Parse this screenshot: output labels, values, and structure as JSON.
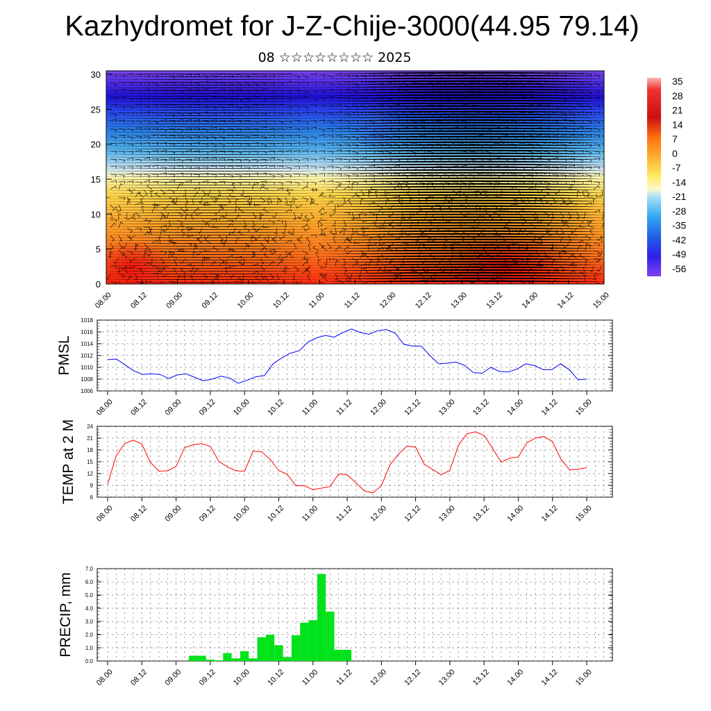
{
  "header": {
    "title": "Kazhydromet for J-Z-Chije-3000(44.95 79.14)",
    "subtitle": "08 ☆☆☆☆☆☆☆☆ 2025"
  },
  "time_labels": [
    "08.00",
    "08.12",
    "09.00",
    "09.12",
    "10.00",
    "10.12",
    "11.00",
    "11.12",
    "12.00",
    "12.12",
    "13.00",
    "13.12",
    "14.00",
    "14.12",
    "15.00"
  ],
  "colorbar": {
    "labels": [
      "35",
      "28",
      "21",
      "14",
      "7",
      "0",
      "-7",
      "-14",
      "-21",
      "-28",
      "-35",
      "-42",
      "-49",
      "-56"
    ]
  },
  "chart_data": [
    {
      "type": "heatmap",
      "name": "Vertical cross-section: temperature with wind barbs",
      "x_labels": [
        "08.00",
        "08.12",
        "09.00",
        "09.12",
        "10.00",
        "10.12",
        "11.00",
        "11.12",
        "12.00",
        "12.12",
        "13.00",
        "13.12",
        "14.00",
        "14.12",
        "15.00"
      ],
      "y_ticks": [
        0,
        5,
        10,
        15,
        20,
        25,
        30
      ],
      "ylim": [
        0,
        30.5
      ],
      "color_levels": [
        35,
        28,
        21,
        14,
        7,
        0,
        -7,
        -14,
        -21,
        -28,
        -35,
        -42,
        -49,
        -56
      ],
      "legend_placement": "right"
    },
    {
      "type": "line",
      "ylabel": "PMSL",
      "ylim": [
        1006,
        1018
      ],
      "y_ticks": [
        1006,
        1008,
        1010,
        1012,
        1014,
        1016,
        1018
      ],
      "x_labels": [
        "08.00",
        "08.12",
        "09.00",
        "09.12",
        "10.00",
        "10.12",
        "11.00",
        "11.12",
        "12.00",
        "12.12",
        "13.00",
        "13.12",
        "14.00",
        "14.12",
        "15.00"
      ],
      "color": "#0000ff",
      "values": [
        1011.3,
        1011.4,
        1010.4,
        1009.4,
        1008.8,
        1008.9,
        1008.8,
        1008.1,
        1008.7,
        1008.9,
        1008.3,
        1007.7,
        1008.0,
        1008.5,
        1008.2,
        1007.3,
        1007.8,
        1008.4,
        1008.6,
        1010.6,
        1011.6,
        1012.4,
        1012.8,
        1014.3,
        1015.0,
        1015.4,
        1015.1,
        1015.9,
        1016.5,
        1015.9,
        1015.6,
        1016.2,
        1016.4,
        1015.8,
        1013.9,
        1013.6,
        1013.6,
        1012.0,
        1010.6,
        1010.7,
        1010.9,
        1010.3,
        1009.1,
        1009.0,
        1010.0,
        1009.3,
        1009.2,
        1009.7,
        1010.6,
        1010.3,
        1009.6,
        1009.6,
        1010.6,
        1009.6,
        1007.9,
        1008.0
      ]
    },
    {
      "type": "line",
      "ylabel": "TEMP at 2 M",
      "ylim": [
        6,
        24
      ],
      "y_ticks": [
        6,
        9,
        12,
        15,
        18,
        21,
        24
      ],
      "x_labels": [
        "08.00",
        "08.12",
        "09.00",
        "09.12",
        "10.00",
        "10.12",
        "11.00",
        "11.12",
        "12.00",
        "12.12",
        "13.00",
        "13.12",
        "14.00",
        "14.12",
        "15.00"
      ],
      "color": "#ff0000",
      "values": [
        9.3,
        16.5,
        19.6,
        20.5,
        19.5,
        14.8,
        12.6,
        12.7,
        13.8,
        18.6,
        19.3,
        19.6,
        18.9,
        15.1,
        13.7,
        12.7,
        12.6,
        17.7,
        17.5,
        15.6,
        12.8,
        11.8,
        8.9,
        8.9,
        7.9,
        8.3,
        8.7,
        11.9,
        11.7,
        9.7,
        7.6,
        7.1,
        8.9,
        14.2,
        16.9,
        19.0,
        18.7,
        14.4,
        13.0,
        11.7,
        12.8,
        19.2,
        22.1,
        22.6,
        21.7,
        18.4,
        14.9,
        15.9,
        16.2,
        19.8,
        21.0,
        21.4,
        20.1,
        15.6,
        12.9,
        13.1,
        13.5
      ]
    },
    {
      "type": "bar",
      "ylabel": "PRECIP, mm",
      "ylim": [
        0,
        7
      ],
      "y_ticks": [
        "0.0",
        "1.0",
        "2.0",
        "3.0",
        "4.0",
        "5.0",
        "6.0",
        "7.0"
      ],
      "x_labels": [
        "08.00",
        "08.12",
        "09.00",
        "09.12",
        "10.00",
        "10.12",
        "11.00",
        "11.12",
        "12.00",
        "12.12",
        "13.00",
        "13.12",
        "14.00",
        "14.12",
        "15.00"
      ],
      "color": "#00e21a",
      "values": [
        0,
        0,
        0,
        0,
        0,
        0,
        0,
        0,
        0,
        0,
        0.4,
        0.4,
        0.1,
        0.05,
        0.6,
        0.2,
        0.75,
        0.2,
        1.8,
        2.0,
        1.2,
        0.3,
        1.95,
        2.9,
        3.1,
        6.6,
        3.75,
        0.85,
        0.85,
        0,
        0,
        0,
        0,
        0,
        0,
        0,
        0,
        0,
        0,
        0,
        0,
        0,
        0,
        0,
        0,
        0,
        0,
        0,
        0,
        0,
        0,
        0,
        0,
        0,
        0,
        0,
        0
      ]
    }
  ]
}
